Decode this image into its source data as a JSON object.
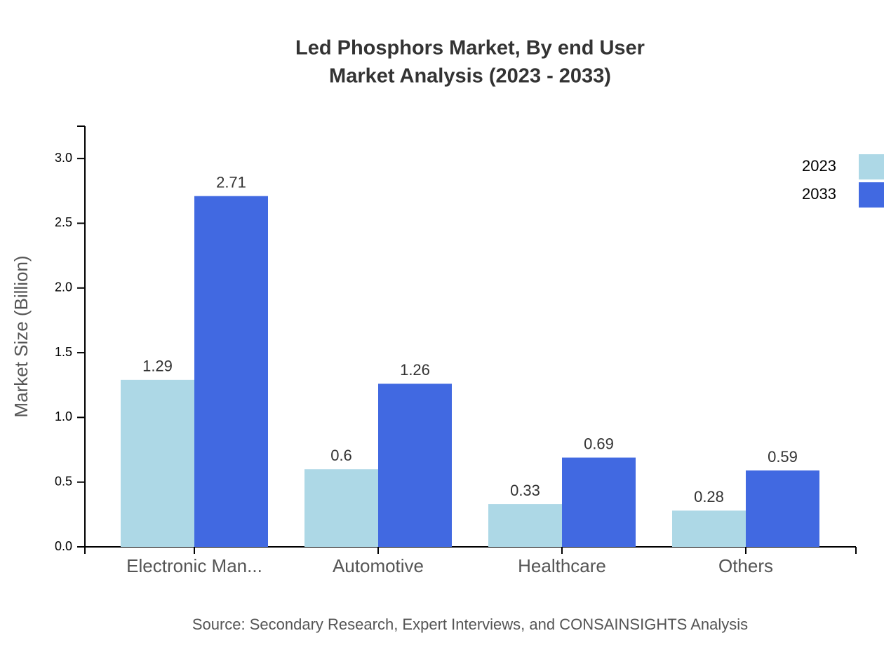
{
  "chart_data": {
    "type": "bar",
    "title": [
      "Led Phosphors Market, By end User",
      "Market Analysis (2023 - 2033)"
    ],
    "y_label": "Market Size (Billion)",
    "source": "Source: Secondary Research, Expert Interviews, and CONSAINSIGHTS Analysis",
    "categories": [
      "Electronic Man...",
      "Automotive",
      "Healthcare",
      "Others"
    ],
    "series": [
      {
        "name": "2023",
        "color": "#add8e6",
        "values": [
          1.29,
          0.6,
          0.33,
          0.28
        ]
      },
      {
        "name": "2033",
        "color": "#4169e1",
        "values": [
          2.71,
          1.26,
          0.69,
          0.59
        ]
      }
    ],
    "ylim": [
      0,
      3.25
    ],
    "yticks": [
      {
        "value": 0,
        "label": "0.0"
      },
      0.5,
      {
        "value": 1,
        "label": "1.0"
      },
      1.5,
      {
        "value": 2,
        "label": "2.0"
      },
      2.5,
      {
        "value": 3,
        "label": "3.0"
      }
    ],
    "grid": false,
    "legend": "top-right"
  }
}
